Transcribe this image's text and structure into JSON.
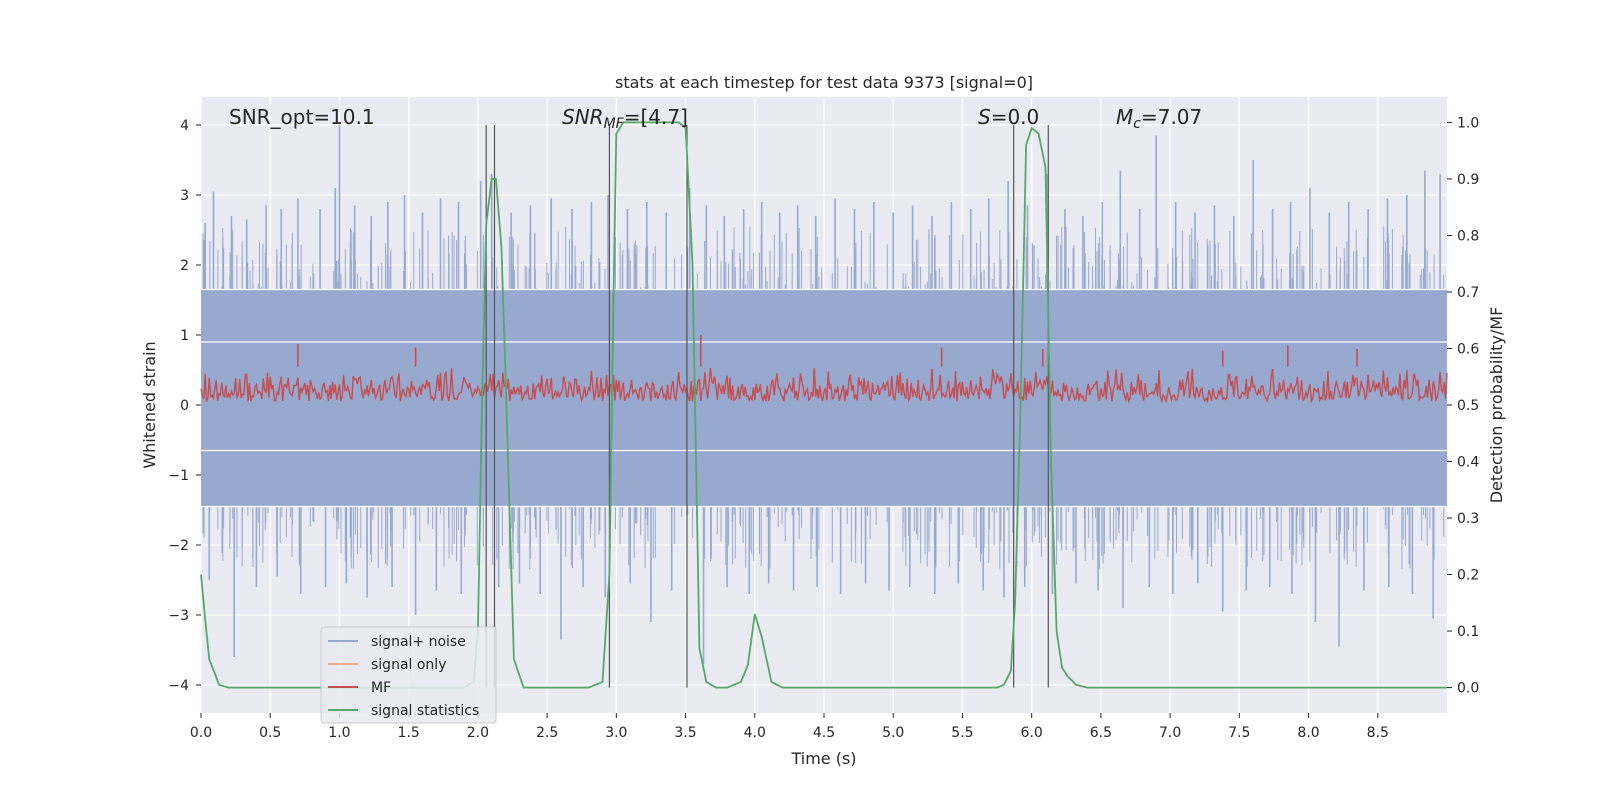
{
  "chart_data": {
    "type": "line",
    "title": "stats at each timestep for test data 9373 [signal=0]",
    "xlabel": "Time (s)",
    "ylabel_left": "Whitened strain",
    "ylabel_right": "Detection probability/MF",
    "xlim": [
      0.0,
      9.0
    ],
    "ylim_left": [
      -4.4,
      4.4
    ],
    "ylim_right": [
      -0.045,
      1.045
    ],
    "x_ticks": [
      "0.0",
      "0.5",
      "1.0",
      "1.5",
      "2.0",
      "2.5",
      "3.0",
      "3.5",
      "4.0",
      "4.5",
      "5.0",
      "5.5",
      "6.0",
      "6.5",
      "7.0",
      "7.5",
      "8.0",
      "8.5"
    ],
    "x_tick_values": [
      0.0,
      0.5,
      1.0,
      1.5,
      2.0,
      2.5,
      3.0,
      3.5,
      4.0,
      4.5,
      5.0,
      5.5,
      6.0,
      6.5,
      7.0,
      7.5,
      8.0,
      8.5
    ],
    "y_left_ticks": [
      "4",
      "3",
      "2",
      "1",
      "0",
      "−1",
      "−2",
      "−3",
      "−4"
    ],
    "y_left_tick_values": [
      4,
      3,
      2,
      1,
      0,
      -1,
      -2,
      -3,
      -4
    ],
    "y_right_ticks": [
      "1.0",
      "0.9",
      "0.8",
      "0.7",
      "0.6",
      "0.5",
      "0.4",
      "0.3",
      "0.2",
      "0.1",
      "0.0"
    ],
    "y_right_tick_values": [
      1.0,
      0.9,
      0.8,
      0.7,
      0.6,
      0.5,
      0.4,
      0.3,
      0.2,
      0.1,
      0.0
    ],
    "annotations": {
      "snr_opt": "SNR_opt=10.1",
      "snr_mf_main": "SNR",
      "snr_mf_sub": "MF",
      "snr_mf_value": "=[4.7]",
      "s_main": "S",
      "s_value": "=0.0",
      "mc_main": "M",
      "mc_sub": "c",
      "mc_value": "=7.07"
    },
    "legend": {
      "position": "lower-left",
      "entries": [
        {
          "label": "signal+ noise",
          "color": "#98a9cf"
        },
        {
          "label": "signal only",
          "color": "#eeab94"
        },
        {
          "label": "MF",
          "color": "#c44e52"
        },
        {
          "label": "signal statistics",
          "color": "#55a868"
        }
      ]
    },
    "colors": {
      "background": "#eaeaf2",
      "grid": "#ffffff",
      "noise": "#98a9cf",
      "mf": "#c44e52",
      "stat": "#55a868",
      "vline": "#555555"
    },
    "noise_band": {
      "dense_upper": 1.65,
      "dense_lower": -1.45,
      "white_lines": [
        1.65,
        0.9,
        -0.65,
        -1.45
      ]
    },
    "mf_band": {
      "lower": 0.05,
      "upper": 0.55
    },
    "vertical_lines": [
      2.06,
      2.12,
      2.95,
      3.51,
      5.87,
      6.12
    ],
    "vertical_line_top": 4.0,
    "signal_statistics": {
      "x": [
        0.0,
        0.03,
        0.06,
        0.1,
        0.13,
        0.2,
        0.3,
        0.5,
        1.0,
        1.5,
        1.9,
        1.97,
        2.0,
        2.03,
        2.06,
        2.1,
        2.13,
        2.17,
        2.2,
        2.26,
        2.33,
        2.4,
        2.6,
        2.8,
        2.9,
        2.95,
        2.98,
        3.0,
        3.05,
        3.1,
        3.2,
        3.3,
        3.45,
        3.5,
        3.55,
        3.6,
        3.65,
        3.72,
        3.8,
        3.9,
        3.95,
        4.0,
        4.05,
        4.12,
        4.2,
        4.3,
        4.5,
        5.0,
        5.5,
        5.75,
        5.8,
        5.85,
        5.88,
        5.92,
        5.96,
        6.0,
        6.05,
        6.1,
        6.14,
        6.18,
        6.22,
        6.26,
        6.32,
        6.4,
        6.6,
        7.0,
        8.0,
        9.0
      ],
      "y": [
        0.2,
        0.12,
        0.05,
        0.025,
        0.005,
        0.0,
        0.0,
        0.0,
        0.0,
        0.0,
        0.0,
        0.01,
        0.1,
        0.5,
        0.82,
        0.9,
        0.9,
        0.78,
        0.55,
        0.05,
        0.0,
        0.0,
        0.0,
        0.0,
        0.01,
        0.2,
        0.7,
        0.98,
        1.0,
        1.0,
        1.0,
        1.0,
        1.0,
        0.99,
        0.75,
        0.07,
        0.01,
        0.0,
        0.0,
        0.01,
        0.04,
        0.13,
        0.09,
        0.01,
        0.0,
        0.0,
        0.0,
        0.0,
        0.0,
        0.0,
        0.005,
        0.03,
        0.15,
        0.5,
        0.96,
        0.99,
        0.98,
        0.92,
        0.4,
        0.1,
        0.035,
        0.02,
        0.005,
        0.0,
        0.0,
        0.0,
        0.0,
        0.0
      ]
    },
    "noise_spikes_high": [
      {
        "x": 0.03,
        "y": 2.6
      },
      {
        "x": 0.09,
        "y": 3.05
      },
      {
        "x": 0.22,
        "y": 2.7
      },
      {
        "x": 0.33,
        "y": 2.65
      },
      {
        "x": 0.47,
        "y": 2.85
      },
      {
        "x": 0.58,
        "y": 2.8
      },
      {
        "x": 0.7,
        "y": 2.95
      },
      {
        "x": 0.86,
        "y": 2.8
      },
      {
        "x": 0.97,
        "y": 3.1
      },
      {
        "x": 1.0,
        "y": 4.0
      },
      {
        "x": 1.11,
        "y": 2.85
      },
      {
        "x": 1.23,
        "y": 2.7
      },
      {
        "x": 1.35,
        "y": 2.9
      },
      {
        "x": 1.47,
        "y": 3.0
      },
      {
        "x": 1.6,
        "y": 2.75
      },
      {
        "x": 1.73,
        "y": 2.95
      },
      {
        "x": 1.86,
        "y": 2.9
      },
      {
        "x": 2.02,
        "y": 3.2
      },
      {
        "x": 2.1,
        "y": 3.3
      },
      {
        "x": 2.24,
        "y": 2.75
      },
      {
        "x": 2.38,
        "y": 2.85
      },
      {
        "x": 2.53,
        "y": 2.95
      },
      {
        "x": 2.68,
        "y": 2.8
      },
      {
        "x": 2.82,
        "y": 2.9
      },
      {
        "x": 2.94,
        "y": 3.0
      },
      {
        "x": 3.08,
        "y": 2.8
      },
      {
        "x": 3.22,
        "y": 2.9
      },
      {
        "x": 3.36,
        "y": 2.75
      },
      {
        "x": 3.53,
        "y": 3.1
      },
      {
        "x": 3.65,
        "y": 2.85
      },
      {
        "x": 3.78,
        "y": 2.7
      },
      {
        "x": 3.92,
        "y": 2.8
      },
      {
        "x": 4.05,
        "y": 2.9
      },
      {
        "x": 4.18,
        "y": 2.75
      },
      {
        "x": 4.31,
        "y": 2.85
      },
      {
        "x": 4.44,
        "y": 2.7
      },
      {
        "x": 4.58,
        "y": 2.95
      },
      {
        "x": 4.72,
        "y": 2.8
      },
      {
        "x": 4.86,
        "y": 2.9
      },
      {
        "x": 5.0,
        "y": 2.75
      },
      {
        "x": 5.14,
        "y": 2.85
      },
      {
        "x": 5.28,
        "y": 2.7
      },
      {
        "x": 5.42,
        "y": 2.9
      },
      {
        "x": 5.56,
        "y": 2.8
      },
      {
        "x": 5.69,
        "y": 2.95
      },
      {
        "x": 5.83,
        "y": 3.2
      },
      {
        "x": 5.97,
        "y": 2.85
      },
      {
        "x": 6.11,
        "y": 3.3
      },
      {
        "x": 6.24,
        "y": 2.8
      },
      {
        "x": 6.37,
        "y": 2.7
      },
      {
        "x": 6.51,
        "y": 2.9
      },
      {
        "x": 6.64,
        "y": 3.35
      },
      {
        "x": 6.78,
        "y": 2.8
      },
      {
        "x": 6.9,
        "y": 3.85
      },
      {
        "x": 7.04,
        "y": 2.9
      },
      {
        "x": 7.18,
        "y": 2.75
      },
      {
        "x": 7.32,
        "y": 2.85
      },
      {
        "x": 7.46,
        "y": 2.7
      },
      {
        "x": 7.6,
        "y": 3.5
      },
      {
        "x": 7.74,
        "y": 2.8
      },
      {
        "x": 7.87,
        "y": 2.9
      },
      {
        "x": 8.01,
        "y": 3.1
      },
      {
        "x": 8.15,
        "y": 2.75
      },
      {
        "x": 8.29,
        "y": 2.9
      },
      {
        "x": 8.43,
        "y": 2.8
      },
      {
        "x": 8.57,
        "y": 2.95
      },
      {
        "x": 8.71,
        "y": 3.0
      },
      {
        "x": 8.84,
        "y": 3.35
      },
      {
        "x": 8.95,
        "y": 3.3
      }
    ],
    "noise_spikes_low": [
      {
        "x": 0.06,
        "y": -2.5
      },
      {
        "x": 0.24,
        "y": -3.6
      },
      {
        "x": 0.4,
        "y": -2.6
      },
      {
        "x": 0.55,
        "y": -2.45
      },
      {
        "x": 0.72,
        "y": -2.7
      },
      {
        "x": 0.9,
        "y": -2.6
      },
      {
        "x": 1.05,
        "y": -2.55
      },
      {
        "x": 1.2,
        "y": -2.75
      },
      {
        "x": 1.38,
        "y": -2.6
      },
      {
        "x": 1.55,
        "y": -3.0
      },
      {
        "x": 1.7,
        "y": -2.65
      },
      {
        "x": 1.88,
        "y": -2.7
      },
      {
        "x": 2.15,
        "y": -2.6
      },
      {
        "x": 2.3,
        "y": -2.55
      },
      {
        "x": 2.45,
        "y": -2.7
      },
      {
        "x": 2.6,
        "y": -3.35
      },
      {
        "x": 2.76,
        "y": -2.6
      },
      {
        "x": 2.92,
        "y": -2.75
      },
      {
        "x": 3.1,
        "y": -2.55
      },
      {
        "x": 3.25,
        "y": -3.1
      },
      {
        "x": 3.4,
        "y": -2.65
      },
      {
        "x": 3.63,
        "y": -3.7
      },
      {
        "x": 3.8,
        "y": -2.6
      },
      {
        "x": 3.96,
        "y": -2.7
      },
      {
        "x": 4.1,
        "y": -2.55
      },
      {
        "x": 4.28,
        "y": -2.65
      },
      {
        "x": 4.45,
        "y": -2.6
      },
      {
        "x": 4.62,
        "y": -2.7
      },
      {
        "x": 4.8,
        "y": -2.55
      },
      {
        "x": 4.97,
        "y": -2.65
      },
      {
        "x": 5.12,
        "y": -2.6
      },
      {
        "x": 5.3,
        "y": -2.7
      },
      {
        "x": 5.47,
        "y": -2.55
      },
      {
        "x": 5.65,
        "y": -2.65
      },
      {
        "x": 5.8,
        "y": -2.75
      },
      {
        "x": 5.95,
        "y": -2.6
      },
      {
        "x": 6.15,
        "y": -2.7
      },
      {
        "x": 6.32,
        "y": -2.55
      },
      {
        "x": 6.48,
        "y": -2.65
      },
      {
        "x": 6.66,
        "y": -2.9
      },
      {
        "x": 6.85,
        "y": -2.6
      },
      {
        "x": 7.02,
        "y": -2.7
      },
      {
        "x": 7.2,
        "y": -2.55
      },
      {
        "x": 7.38,
        "y": -2.95
      },
      {
        "x": 7.55,
        "y": -2.65
      },
      {
        "x": 7.72,
        "y": -2.6
      },
      {
        "x": 7.88,
        "y": -2.7
      },
      {
        "x": 8.05,
        "y": -3.1
      },
      {
        "x": 8.22,
        "y": -3.45
      },
      {
        "x": 8.4,
        "y": -2.65
      },
      {
        "x": 8.58,
        "y": -2.6
      },
      {
        "x": 8.75,
        "y": -2.7
      },
      {
        "x": 8.9,
        "y": -3.05
      }
    ],
    "mf_spikes": [
      {
        "x": 0.7,
        "y": 0.87
      },
      {
        "x": 1.55,
        "y": 0.82
      },
      {
        "x": 3.61,
        "y": 1.0
      },
      {
        "x": 5.35,
        "y": 0.82
      },
      {
        "x": 6.08,
        "y": 0.8
      },
      {
        "x": 7.38,
        "y": 0.78
      },
      {
        "x": 7.85,
        "y": 0.85
      },
      {
        "x": 8.35,
        "y": 0.8
      }
    ]
  }
}
